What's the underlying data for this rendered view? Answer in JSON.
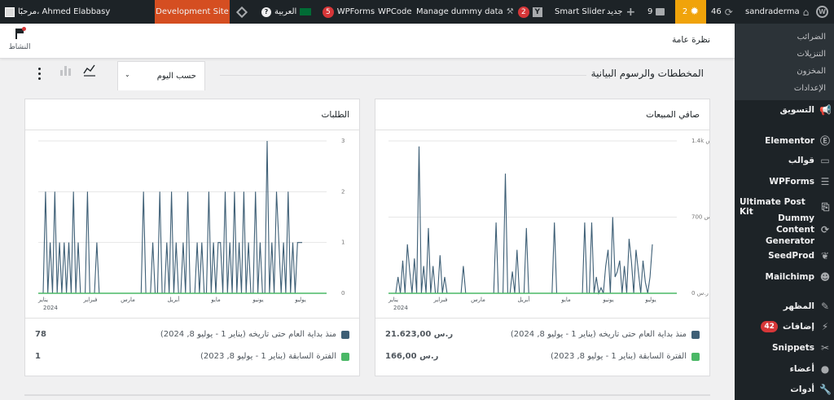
{
  "adminbar": {
    "wp_logo": "wordpress-icon",
    "site_name": "sandraderma",
    "updates_count": "46",
    "notifications_count": "2",
    "comments_count": "9",
    "new_label": "جديد",
    "smart_slider": "Smart Slider",
    "yoast_count": "2",
    "manage_dummy": "Manage dummy data",
    "wpcode": "WPCode",
    "wpforms": "WPForms",
    "wpforms_count": "5",
    "language": "العربية",
    "dev_site": "Development Site",
    "greeting": "مرحبًا، Ahmed Elabbasy"
  },
  "sidebar": {
    "submenu": [
      "الضرائب",
      "التنزيلات",
      "المخزون",
      "الإعدادات"
    ],
    "items": [
      {
        "label": "التسويق",
        "icon": "megaphone-icon"
      },
      {
        "label": "Elementor",
        "icon": "elementor-icon"
      },
      {
        "label": "قوالب",
        "icon": "folder-icon"
      },
      {
        "label": "WPForms",
        "icon": "wpforms-icon"
      },
      {
        "label": "Ultimate Post Kit",
        "icon": "upk-icon"
      },
      {
        "label": "Dummy Content Generator",
        "icon": "refresh-icon"
      },
      {
        "label": "SeedProd",
        "icon": "seedprod-icon"
      },
      {
        "label": "Mailchimp",
        "icon": "mailchimp-icon"
      },
      {
        "label": "المظهر",
        "icon": "brush-icon"
      },
      {
        "label": "إضافات",
        "icon": "plugin-icon",
        "badge": "42"
      },
      {
        "label": "Snippets",
        "icon": "scissors-icon"
      },
      {
        "label": "أعضاء",
        "icon": "user-icon"
      },
      {
        "label": "أدوات",
        "icon": "wrench-icon"
      }
    ]
  },
  "topbar": {
    "page_title": "نظرة عامة",
    "activity_label": "النشاط"
  },
  "section": {
    "title": "المخططات والرسوم البيانية",
    "period_select": "حسب اليوم"
  },
  "net_sales": {
    "title": "صافي المبيعات",
    "current_label": "منذ بداية العام حتى تاريخه (يناير 1 - يوليو 8, 2024)",
    "current_value": "21.623,00 ر.س",
    "previous_label": "الفترة السابقة (يناير 1 - يوليو 8, 2023)",
    "previous_value": "166,00 ر.س"
  },
  "orders": {
    "title": "الطلبات",
    "current_label": "منذ بداية العام حتى تاريخه (يناير 1 - يوليو 8, 2024)",
    "current_value": "78",
    "previous_label": "الفترة السابقة (يناير 1 - يوليو 8, 2023)",
    "previous_value": "1"
  },
  "chart_data": [
    {
      "type": "line",
      "title": "صافي المبيعات",
      "y_ticks": [
        "0 ر.س",
        "700 ر.س",
        "1.4k ر.س"
      ],
      "ylim": [
        0,
        1400
      ],
      "x_ticks": [
        "يناير",
        "2024",
        "فبراير",
        "مارس",
        "أبريل",
        "مايو",
        "يونيو",
        "يوليو"
      ],
      "colors": {
        "current": "#3e5f76",
        "previous": "#4ab866"
      },
      "series": [
        {
          "name": "منذ بداية العام حتى تاريخه (يناير 1 - يوليو 8, 2024)",
          "values": [
            0,
            0,
            150,
            0,
            300,
            0,
            450,
            200,
            0,
            320,
            0,
            1350,
            0,
            250,
            0,
            600,
            0,
            250,
            0,
            0,
            350,
            0,
            150,
            0,
            0,
            0,
            0,
            0,
            0,
            0,
            250,
            0,
            0,
            0,
            0,
            0,
            0,
            0,
            0,
            0,
            0,
            0,
            0,
            0,
            650,
            0,
            0,
            0,
            1100,
            0,
            0,
            200,
            0,
            400,
            0,
            0,
            0,
            600,
            0,
            0,
            0,
            0,
            0,
            0,
            0,
            0,
            0,
            0,
            0,
            650,
            0,
            0,
            0,
            0,
            0,
            0,
            0,
            0,
            0,
            0,
            0,
            0,
            650,
            0,
            0,
            650,
            0,
            150,
            0,
            50,
            0,
            250,
            400,
            0,
            700,
            150,
            200,
            300,
            0,
            250,
            0,
            500,
            300,
            0,
            400,
            200,
            0,
            300,
            100,
            0,
            150,
            450
          ]
        },
        {
          "name": "الفترة السابقة (يناير 1 - يوليو 8, 2023)",
          "values": []
        }
      ]
    },
    {
      "type": "line",
      "title": "الطلبات",
      "y_ticks": [
        "0",
        "1",
        "2",
        "3"
      ],
      "ylim": [
        0,
        3
      ],
      "x_ticks": [
        "يناير",
        "2024",
        "فبراير",
        "مارس",
        "أبريل",
        "مايو",
        "يونيو",
        "يوليو"
      ],
      "colors": {
        "current": "#3e5f76",
        "previous": "#4ab866"
      },
      "series": [
        {
          "name": "منذ بداية العام حتى تاريخه (يناير 1 - يوليو 8, 2024)",
          "values": [
            0,
            2,
            0,
            1,
            0,
            2,
            0,
            1,
            0,
            1,
            0,
            1,
            0,
            2,
            0,
            1,
            0,
            0,
            0,
            2,
            0,
            0,
            0,
            1,
            0,
            0,
            0,
            0,
            0,
            0,
            0,
            0,
            0,
            0,
            0,
            0,
            0,
            0,
            0,
            0,
            0,
            0,
            0,
            2,
            0,
            0,
            0,
            1,
            0,
            0,
            2,
            0,
            0,
            1,
            0,
            2,
            0,
            1,
            0,
            0,
            1,
            0,
            2,
            0,
            0,
            0,
            1,
            0,
            1,
            0,
            0,
            2,
            0,
            1,
            0,
            1,
            1,
            0,
            2,
            0,
            1,
            0,
            2,
            0,
            1,
            0,
            2,
            0,
            1,
            0,
            0,
            2,
            0,
            1,
            0,
            0,
            3,
            0,
            1,
            0,
            2,
            1,
            0,
            1,
            0,
            2,
            0,
            1,
            0,
            1,
            1,
            1
          ]
        },
        {
          "name": "الفترة السابقة (يناير 1 - يوليو 8, 2023)",
          "values": []
        }
      ]
    }
  ]
}
